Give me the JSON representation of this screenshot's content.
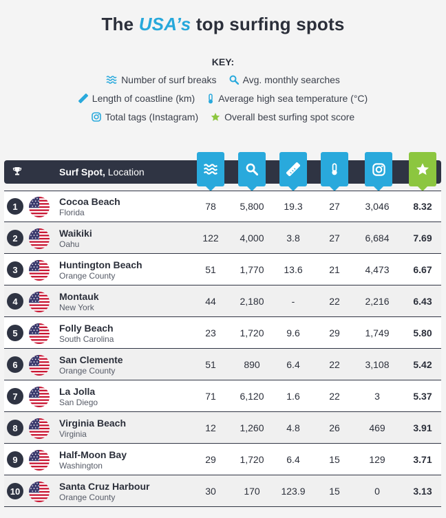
{
  "title": {
    "pre": "The ",
    "accent": "USA’s",
    "post": " top surfing spots"
  },
  "key": {
    "title": "KEY:",
    "items": [
      {
        "icon": "waves-icon",
        "label": "Number of surf breaks"
      },
      {
        "icon": "search-icon",
        "label": "Avg. monthly searches"
      },
      {
        "icon": "ruler-icon",
        "label": "Length of coastline (km)"
      },
      {
        "icon": "thermometer-icon",
        "label": "Average high sea temperature (°C)"
      },
      {
        "icon": "instagram-icon",
        "label": "Total tags (Instagram)"
      },
      {
        "icon": "star-icon",
        "label": "Overall best surfing spot score"
      }
    ]
  },
  "table": {
    "header_bold": "Surf Spot,",
    "header_rest": " Location",
    "colors": {
      "blue": "#29a9dc",
      "green": "#8cc63f",
      "dark": "#2f3443"
    },
    "rows": [
      {
        "rank": "1",
        "name": "Cocoa Beach",
        "location": "Florida",
        "breaks": "78",
        "searches": "5,800",
        "coastline": "19.3",
        "temp": "27",
        "tags": "3,046",
        "score": "8.32"
      },
      {
        "rank": "2",
        "name": "Waikiki",
        "location": "Oahu",
        "breaks": "122",
        "searches": "4,000",
        "coastline": "3.8",
        "temp": "27",
        "tags": "6,684",
        "score": "7.69"
      },
      {
        "rank": "3",
        "name": "Huntington Beach",
        "location": "Orange County",
        "breaks": "51",
        "searches": "1,770",
        "coastline": "13.6",
        "temp": "21",
        "tags": "4,473",
        "score": "6.67"
      },
      {
        "rank": "4",
        "name": "Montauk",
        "location": "New York",
        "breaks": "44",
        "searches": "2,180",
        "coastline": "-",
        "temp": "22",
        "tags": "2,216",
        "score": "6.43"
      },
      {
        "rank": "5",
        "name": "Folly Beach",
        "location": "South Carolina",
        "breaks": "23",
        "searches": "1,720",
        "coastline": "9.6",
        "temp": "29",
        "tags": "1,749",
        "score": "5.80"
      },
      {
        "rank": "6",
        "name": "San Clemente",
        "location": "Orange County",
        "breaks": "51",
        "searches": "890",
        "coastline": "6.4",
        "temp": "22",
        "tags": "3,108",
        "score": "5.42"
      },
      {
        "rank": "7",
        "name": "La Jolla",
        "location": "San Diego",
        "breaks": "71",
        "searches": "6,120",
        "coastline": "1.6",
        "temp": "22",
        "tags": "3",
        "score": "5.37"
      },
      {
        "rank": "8",
        "name": "Virginia Beach",
        "location": "Virginia",
        "breaks": "12",
        "searches": "1,260",
        "coastline": "4.8",
        "temp": "26",
        "tags": "469",
        "score": "3.91"
      },
      {
        "rank": "9",
        "name": "Half-Moon Bay",
        "location": "Washington",
        "breaks": "29",
        "searches": "1,720",
        "coastline": "6.4",
        "temp": "15",
        "tags": "129",
        "score": "3.71"
      },
      {
        "rank": "10",
        "name": "Santa Cruz Harbour",
        "location": "Orange County",
        "breaks": "30",
        "searches": "170",
        "coastline": "123.9",
        "temp": "15",
        "tags": "0",
        "score": "3.13"
      }
    ]
  }
}
